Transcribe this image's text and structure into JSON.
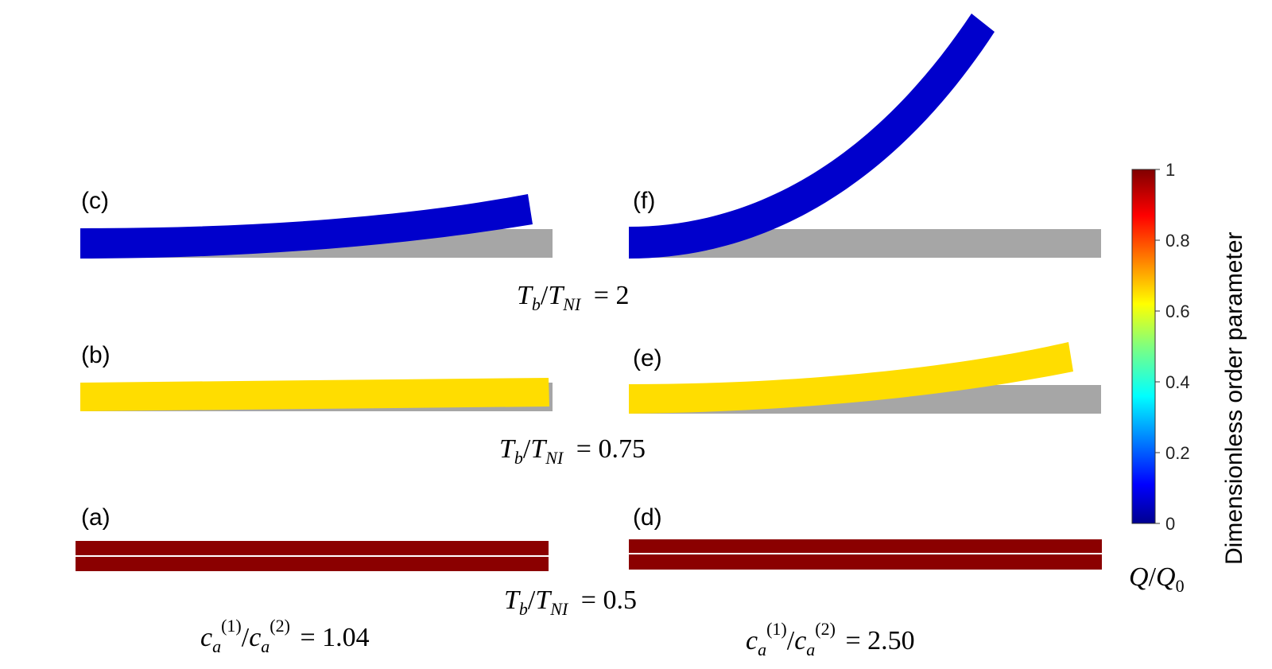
{
  "panels": [
    {
      "id": "a",
      "label": "(a)",
      "Q": 1.0,
      "curvature": 0.0,
      "split": true
    },
    {
      "id": "b",
      "label": "(b)",
      "Q": 0.6,
      "curvature": 0.0,
      "split": false
    },
    {
      "id": "c",
      "label": "(c)",
      "Q": 0.0,
      "curvature": 0.35,
      "split": false
    },
    {
      "id": "d",
      "label": "(d)",
      "Q": 1.0,
      "curvature": 0.0,
      "split": true
    },
    {
      "id": "e",
      "label": "(e)",
      "Q": 0.6,
      "curvature": 0.35,
      "split": false
    },
    {
      "id": "f",
      "label": "(f)",
      "Q": 0.0,
      "curvature": 3.2,
      "split": false
    }
  ],
  "row_labels": {
    "top": {
      "ratio": "T",
      "sub1": "b",
      "slash": "/",
      "ratio2": "T",
      "sub2": "NI",
      "eq": " = 2"
    },
    "middle": {
      "ratio": "T",
      "sub1": "b",
      "slash": "/",
      "ratio2": "T",
      "sub2": "NI",
      "eq": " = 0.75"
    },
    "bottom": {
      "ratio": "T",
      "sub1": "b",
      "slash": "/",
      "ratio2": "T",
      "sub2": "NI",
      "eq": " = 0.5"
    }
  },
  "column_labels": {
    "left": {
      "c": "c",
      "a": "a",
      "sup1": "(1)",
      "slash": "/",
      "c2": "c",
      "a2": "a",
      "sup2": "(2)",
      "eq": " = 1.04"
    },
    "right": {
      "c": "c",
      "a": "a",
      "sup1": "(1)",
      "slash": "/",
      "c2": "c",
      "a2": "a",
      "sup2": "(2)",
      "eq": " = 2.50"
    }
  },
  "colorbar": {
    "title": "Dimensionless order parameter",
    "ticks": [
      "0",
      "0.2",
      "0.4",
      "0.6",
      "0.8",
      "1"
    ],
    "tick_values": [
      0,
      0.2,
      0.4,
      0.6,
      0.8,
      1
    ],
    "symbol": {
      "Q": "Q",
      "slash": "/",
      "Q0": "Q",
      "sub0": "0"
    },
    "colormap": "jet"
  },
  "colors": {
    "substrate": "#a6a6a6",
    "q_high": "#8b0000",
    "q_mid": "#ffdd00",
    "q_low": "#0000cc",
    "split_line": "#ffffff"
  }
}
